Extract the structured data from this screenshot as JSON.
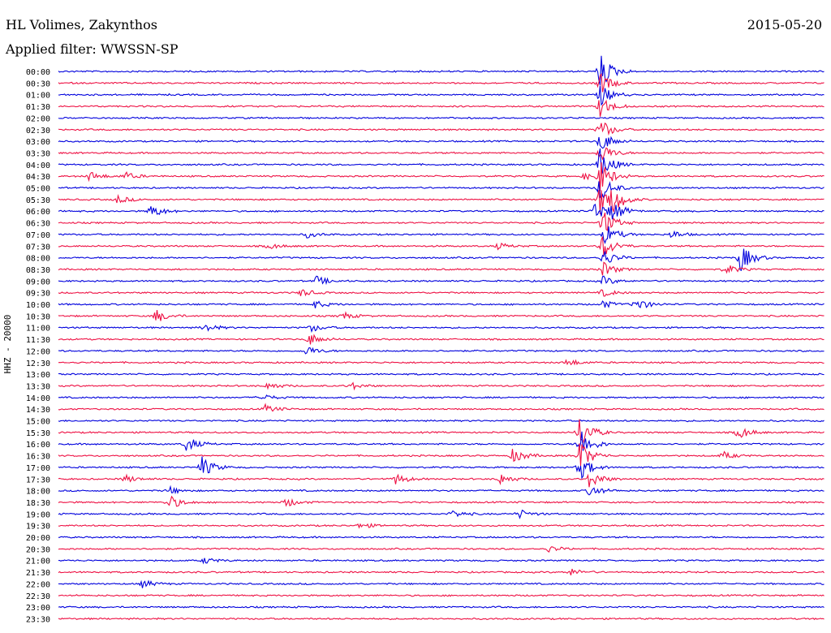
{
  "header": {
    "station": "HL Volimes, Zakynthos",
    "date": "2015-05-20",
    "filter": "Applied filter: WWSSN-SP"
  },
  "chart_data": {
    "type": "line",
    "chart_kind": "helicorder",
    "ylabel": "HHZ - 20000",
    "series_colors": [
      "#0000dd",
      "#ee1144"
    ],
    "tick_labels": [
      "00:00",
      "00:30",
      "01:00",
      "01:30",
      "02:00",
      "02:30",
      "03:00",
      "03:30",
      "04:00",
      "04:30",
      "05:00",
      "05:30",
      "06:00",
      "06:30",
      "07:00",
      "07:30",
      "08:00",
      "08:30",
      "09:00",
      "09:30",
      "10:00",
      "10:30",
      "11:00",
      "11:30",
      "12:00",
      "12:30",
      "13:00",
      "13:30",
      "14:00",
      "14:30",
      "15:00",
      "15:30",
      "16:00",
      "16:30",
      "17:00",
      "17:30",
      "18:00",
      "18:30",
      "19:00",
      "19:30",
      "20:00",
      "20:30",
      "21:00",
      "21:30",
      "22:00",
      "22:30",
      "23:00",
      "23:30"
    ],
    "trace_minutes": 30,
    "time_range_minutes": [
      0,
      30
    ],
    "events": [
      {
        "trace": 0,
        "minute": 21.2,
        "amp": 24
      },
      {
        "trace": 1,
        "minute": 21.2,
        "amp": 14
      },
      {
        "trace": 2,
        "minute": 21.2,
        "amp": 14
      },
      {
        "trace": 3,
        "minute": 21.2,
        "amp": 14
      },
      {
        "trace": 5,
        "minute": 21.2,
        "amp": 14
      },
      {
        "trace": 6,
        "minute": 21.2,
        "amp": 14
      },
      {
        "trace": 7,
        "minute": 21.2,
        "amp": 14
      },
      {
        "trace": 8,
        "minute": 21.2,
        "amp": 20
      },
      {
        "trace": 9,
        "minute": 1.2,
        "amp": 6
      },
      {
        "trace": 9,
        "minute": 2.6,
        "amp": 5
      },
      {
        "trace": 9,
        "minute": 20.6,
        "amp": 4
      },
      {
        "trace": 9,
        "minute": 21.2,
        "amp": 20
      },
      {
        "trace": 10,
        "minute": 21.2,
        "amp": 18
      },
      {
        "trace": 11,
        "minute": 2.3,
        "amp": 5
      },
      {
        "trace": 11,
        "minute": 21.2,
        "amp": 20
      },
      {
        "trace": 11,
        "minute": 21.7,
        "amp": 14
      },
      {
        "trace": 12,
        "minute": 3.6,
        "amp": 9
      },
      {
        "trace": 12,
        "minute": 21.0,
        "amp": 14
      },
      {
        "trace": 12,
        "minute": 21.7,
        "amp": 12
      },
      {
        "trace": 13,
        "minute": 21.3,
        "amp": 18
      },
      {
        "trace": 14,
        "minute": 9.7,
        "amp": 4
      },
      {
        "trace": 14,
        "minute": 24.0,
        "amp": 5
      },
      {
        "trace": 14,
        "minute": 21.4,
        "amp": 14
      },
      {
        "trace": 15,
        "minute": 8.2,
        "amp": 4
      },
      {
        "trace": 15,
        "minute": 17.2,
        "amp": 4
      },
      {
        "trace": 15,
        "minute": 21.3,
        "amp": 16
      },
      {
        "trace": 16,
        "minute": 26.7,
        "amp": 18
      },
      {
        "trace": 16,
        "minute": 21.3,
        "amp": 12
      },
      {
        "trace": 17,
        "minute": 26.1,
        "amp": 7
      },
      {
        "trace": 17,
        "minute": 21.3,
        "amp": 10
      },
      {
        "trace": 18,
        "minute": 10.1,
        "amp": 6
      },
      {
        "trace": 18,
        "minute": 21.3,
        "amp": 6
      },
      {
        "trace": 19,
        "minute": 9.5,
        "amp": 5
      },
      {
        "trace": 19,
        "minute": 21.3,
        "amp": 5
      },
      {
        "trace": 20,
        "minute": 10.0,
        "amp": 5
      },
      {
        "trace": 20,
        "minute": 22.6,
        "amp": 9
      },
      {
        "trace": 20,
        "minute": 21.3,
        "amp": 5
      },
      {
        "trace": 21,
        "minute": 3.8,
        "amp": 9
      },
      {
        "trace": 21,
        "minute": 11.1,
        "amp": 5
      },
      {
        "trace": 22,
        "minute": 5.7,
        "amp": 6
      },
      {
        "trace": 22,
        "minute": 9.9,
        "amp": 5
      },
      {
        "trace": 23,
        "minute": 9.8,
        "amp": 8
      },
      {
        "trace": 24,
        "minute": 9.7,
        "amp": 6
      },
      {
        "trace": 25,
        "minute": 19.9,
        "amp": 5
      },
      {
        "trace": 27,
        "minute": 8.2,
        "amp": 5
      },
      {
        "trace": 27,
        "minute": 11.4,
        "amp": 5
      },
      {
        "trace": 28,
        "minute": 7.9,
        "amp": 5
      },
      {
        "trace": 29,
        "minute": 8.1,
        "amp": 5
      },
      {
        "trace": 31,
        "minute": 26.6,
        "amp": 9
      },
      {
        "trace": 31,
        "minute": 20.4,
        "amp": 22
      },
      {
        "trace": 32,
        "minute": 5.0,
        "amp": 10
      },
      {
        "trace": 32,
        "minute": 20.4,
        "amp": 22
      },
      {
        "trace": 33,
        "minute": 17.8,
        "amp": 10
      },
      {
        "trace": 33,
        "minute": 26.0,
        "amp": 5
      },
      {
        "trace": 33,
        "minute": 20.4,
        "amp": 20
      },
      {
        "trace": 34,
        "minute": 5.6,
        "amp": 14
      },
      {
        "trace": 34,
        "minute": 20.4,
        "amp": 16
      },
      {
        "trace": 35,
        "minute": 2.6,
        "amp": 5
      },
      {
        "trace": 35,
        "minute": 13.2,
        "amp": 7
      },
      {
        "trace": 35,
        "minute": 17.3,
        "amp": 7
      },
      {
        "trace": 35,
        "minute": 20.8,
        "amp": 12
      },
      {
        "trace": 36,
        "minute": 4.3,
        "amp": 5
      },
      {
        "trace": 36,
        "minute": 20.8,
        "amp": 8
      },
      {
        "trace": 37,
        "minute": 4.3,
        "amp": 10
      },
      {
        "trace": 37,
        "minute": 8.9,
        "amp": 6
      },
      {
        "trace": 38,
        "minute": 15.4,
        "amp": 5
      },
      {
        "trace": 38,
        "minute": 18.0,
        "amp": 6
      },
      {
        "trace": 39,
        "minute": 11.8,
        "amp": 4
      },
      {
        "trace": 41,
        "minute": 19.2,
        "amp": 4
      },
      {
        "trace": 42,
        "minute": 5.7,
        "amp": 4
      },
      {
        "trace": 43,
        "minute": 20.0,
        "amp": 5
      },
      {
        "trace": 44,
        "minute": 3.3,
        "amp": 5
      }
    ]
  }
}
